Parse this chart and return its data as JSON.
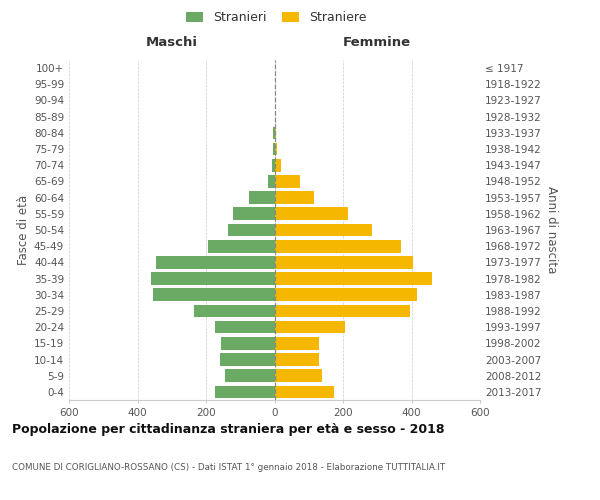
{
  "age_groups": [
    "0-4",
    "5-9",
    "10-14",
    "15-19",
    "20-24",
    "25-29",
    "30-34",
    "35-39",
    "40-44",
    "45-49",
    "50-54",
    "55-59",
    "60-64",
    "65-69",
    "70-74",
    "75-79",
    "80-84",
    "85-89",
    "90-94",
    "95-99",
    "100+"
  ],
  "birth_years": [
    "2013-2017",
    "2008-2012",
    "2003-2007",
    "1998-2002",
    "1993-1997",
    "1988-1992",
    "1983-1987",
    "1978-1982",
    "1973-1977",
    "1968-1972",
    "1963-1967",
    "1958-1962",
    "1953-1957",
    "1948-1952",
    "1943-1947",
    "1938-1942",
    "1933-1937",
    "1928-1932",
    "1923-1927",
    "1918-1922",
    "≤ 1917"
  ],
  "maschi": [
    175,
    145,
    160,
    155,
    175,
    235,
    355,
    360,
    345,
    195,
    135,
    120,
    75,
    18,
    8,
    4,
    3,
    0,
    0,
    0,
    0
  ],
  "femmine": [
    175,
    140,
    130,
    130,
    205,
    395,
    415,
    460,
    405,
    370,
    285,
    215,
    115,
    75,
    20,
    7,
    5,
    0,
    0,
    0,
    0
  ],
  "male_color": "#6aaa64",
  "female_color": "#f5b700",
  "grid_color": "#cccccc",
  "dashed_line_color": "#888888",
  "text_color": "#555555",
  "header_color": "#333333",
  "title": "Popolazione per cittadinanza straniera per età e sesso - 2018",
  "subtitle": "COMUNE DI CORIGLIANO-ROSSANO (CS) - Dati ISTAT 1° gennaio 2018 - Elaborazione TUTTITALIA.IT",
  "xlabel_left": "Maschi",
  "xlabel_right": "Femmine",
  "ylabel_left": "Fasce di età",
  "ylabel_right": "Anni di nascita",
  "legend_male": "Stranieri",
  "legend_female": "Straniere",
  "xlim": 600,
  "xticks": [
    -600,
    -400,
    -200,
    0,
    200,
    400,
    600
  ],
  "xticklabels": [
    "600",
    "400",
    "200",
    "0",
    "200",
    "400",
    "600"
  ],
  "background_color": "#ffffff"
}
